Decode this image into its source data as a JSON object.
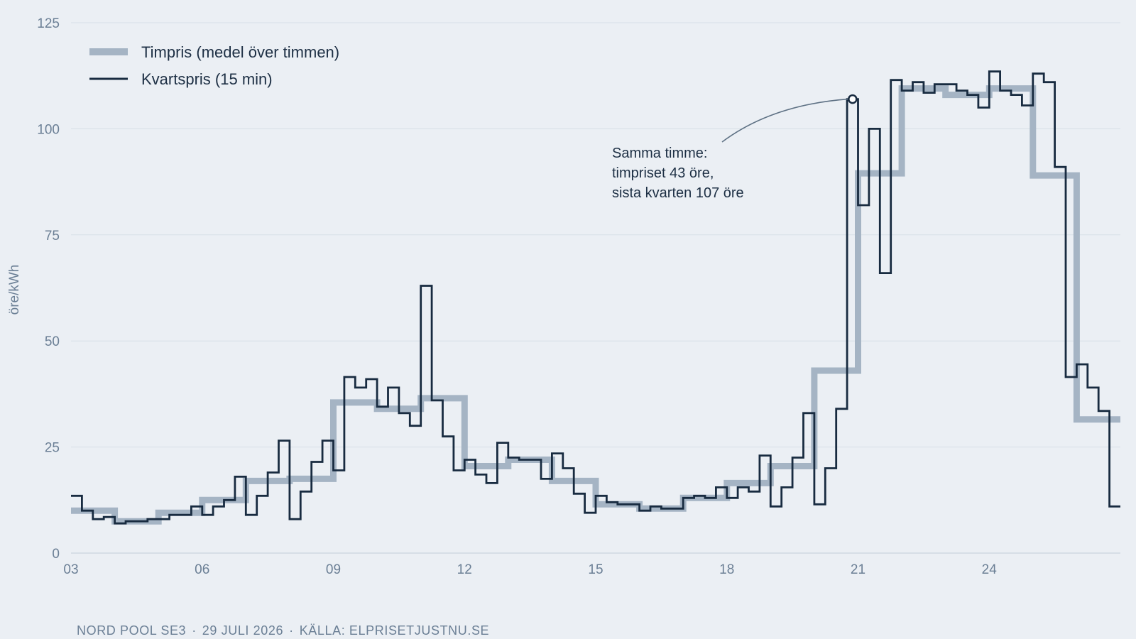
{
  "chart_data": {
    "type": "line",
    "step": true,
    "xlabel": "",
    "ylabel": "öre/kWh",
    "ylim": [
      0,
      125
    ],
    "x_ticks": [
      "03",
      "06",
      "09",
      "12",
      "15",
      "18",
      "21",
      "24"
    ],
    "y_ticks": [
      "0",
      "25",
      "50",
      "75",
      "100",
      "125"
    ],
    "grid": "horizontal",
    "legend_position": "top-left",
    "series": [
      {
        "name": "Timpris (medel över timmen)",
        "color": "#a5b4c4",
        "resolution": "1h",
        "x_start": 3,
        "values": [
          10,
          7.5,
          9.5,
          12.5,
          17,
          17.5,
          35.5,
          34,
          36.5,
          20.5,
          22,
          17,
          11.5,
          10.5,
          13,
          16.5,
          20.5,
          43,
          89.5,
          109.5,
          108,
          109.5,
          89,
          31.5
        ]
      },
      {
        "name": "Kvartspris (15 min)",
        "color": "#182b40",
        "resolution": "15min",
        "x_start": 3,
        "values": [
          13.5,
          10,
          8,
          8.5,
          7,
          7.5,
          7.5,
          8,
          8,
          9,
          9,
          11,
          9,
          11,
          12.5,
          18,
          9,
          13.5,
          19,
          26.5,
          8,
          14.5,
          21.5,
          26.5,
          19.5,
          41.5,
          39,
          41,
          34.5,
          39,
          33,
          30,
          63,
          36,
          27.5,
          19.5,
          22,
          18.5,
          16.5,
          26,
          22.5,
          22,
          22,
          17.5,
          23.5,
          20,
          14,
          9.5,
          13.5,
          12,
          11.5,
          11.5,
          10,
          11,
          10.5,
          10.5,
          13,
          13.5,
          13,
          15.5,
          13,
          15.5,
          14.5,
          23,
          11,
          15.5,
          22.5,
          33,
          11.5,
          20,
          34,
          107,
          82,
          100,
          66,
          111.5,
          109,
          111,
          108.5,
          110.5,
          110.5,
          109,
          108,
          105,
          113.5,
          109,
          108,
          105.5,
          113,
          111,
          91,
          41.5,
          44.5,
          39,
          33.5,
          11
        ]
      }
    ],
    "annotation": {
      "lines": [
        "Samma timme:",
        "timpriset 43 öre,",
        "sista kvarten 107 öre"
      ],
      "point_x": 20.875,
      "point_y": 107
    }
  },
  "footer": {
    "parts": [
      "NORD POOL SE3",
      "29 JULI 2026",
      "KÄLLA: ELPRISETJUSTNU.SE"
    ],
    "separator": "·"
  }
}
